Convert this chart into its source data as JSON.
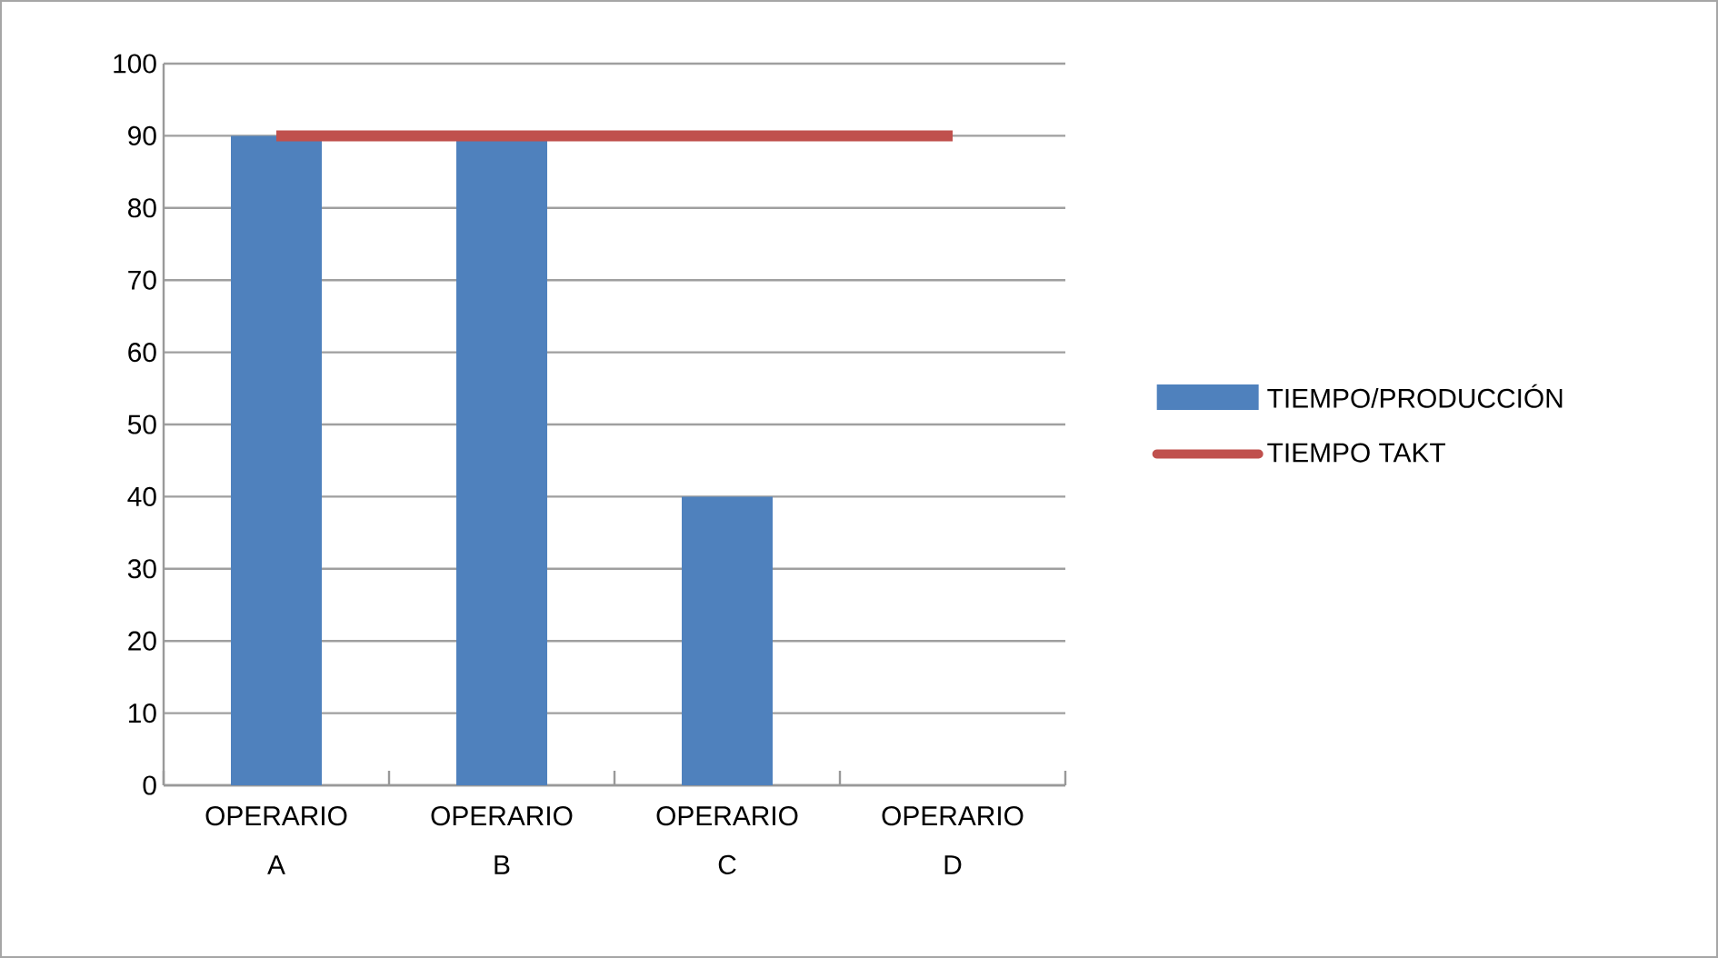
{
  "chart_data": {
    "type": "bar",
    "categories": [
      "OPERARIO A",
      "OPERARIO B",
      "OPERARIO C",
      "OPERARIO D"
    ],
    "series": [
      {
        "name": "TIEMPO/PRODUCCIÓN",
        "color": "#4f81bd",
        "values": [
          90,
          90,
          40,
          null
        ]
      },
      {
        "name": "TIEMPO TAKT",
        "type": "line",
        "color": "#c0504d",
        "values": [
          90,
          90,
          90,
          90
        ]
      }
    ],
    "ylim": [
      0,
      100
    ],
    "yticks": [
      0,
      10,
      20,
      30,
      40,
      50,
      60,
      70,
      80,
      90,
      100
    ],
    "grid": "y",
    "legend": "right",
    "marker": "none"
  }
}
